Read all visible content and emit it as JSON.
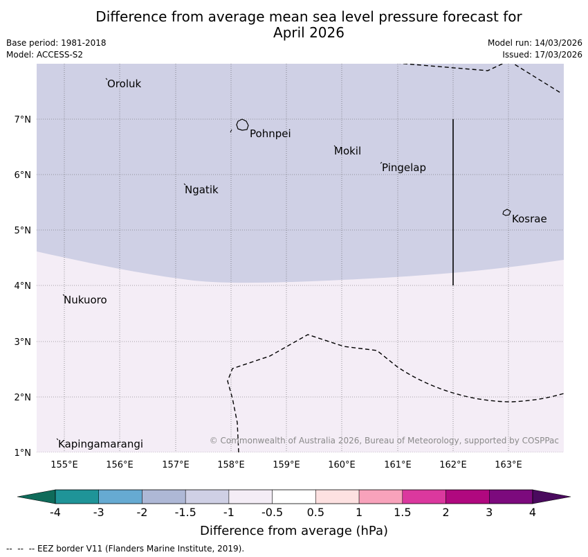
{
  "title": {
    "line1": "Difference from average mean sea level pressure forecast for",
    "line2": "April 2026"
  },
  "meta": {
    "base_period": "Base period: 1981-2018",
    "model": "Model: ACCESS-S2",
    "model_run": "Model run: 14/03/2026",
    "issued": "Issued: 17/03/2026"
  },
  "map": {
    "lat_labels": [
      "7°N",
      "6°N",
      "5°N",
      "4°N",
      "3°N",
      "2°N",
      "1°N"
    ],
    "lon_labels": [
      "155°E",
      "156°E",
      "157°E",
      "158°E",
      "159°E",
      "160°E",
      "161°E",
      "162°E",
      "163°E"
    ],
    "places": [
      {
        "name": "Oroluk"
      },
      {
        "name": "Pohnpei"
      },
      {
        "name": "Mokil"
      },
      {
        "name": "Pingelap"
      },
      {
        "name": "Ngatik"
      },
      {
        "name": "Kosrae"
      },
      {
        "name": "Nukuoro"
      },
      {
        "name": "Kapingamarangi"
      }
    ],
    "copyright": "© Commonwealth of Australia 2026, Bureau of Meteorology, supported by COSPPac",
    "regions": {
      "north_band": "-1.5 to -1",
      "south_band": "-1 to -0.5"
    }
  },
  "colorbar": {
    "title": "Difference from average (hPa)",
    "ticks": [
      "-4",
      "-3",
      "-2",
      "-1.5",
      "-1",
      "-0.5",
      "0.5",
      "1",
      "1.5",
      "2",
      "3",
      "4"
    ],
    "colors": [
      "#1f9498",
      "#66aad2",
      "#aeb8d6",
      "#cfd0e5",
      "#f4edf6",
      "#ffffff",
      "#fde1e1",
      "#f8a2bb",
      "#db389e",
      "#b0087f",
      "#7c0a7d"
    ],
    "low_extend_color": "#0f6b5a",
    "high_extend_color": "#4a0a5e"
  },
  "legend": {
    "eez": "--  --  -- EEZ border V11 (Flanders Marine Institute, 2019)."
  }
}
